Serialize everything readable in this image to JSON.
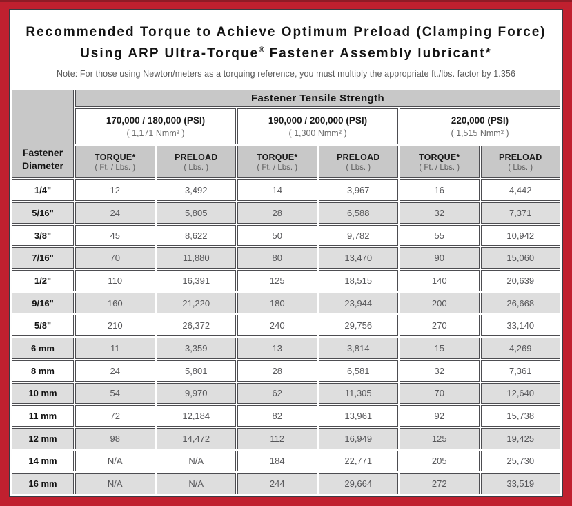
{
  "title": {
    "line1": "Recommended Torque to Achieve Optimum Preload (Clamping Force)",
    "line2_pre": "Using ARP Ultra-Torque",
    "line2_sup": "®",
    "line2_post": " Fastener Assembly lubricant*"
  },
  "note": "Note: For those using Newton/meters as a torquing reference, you must multiply the appropriate ft./lbs. factor by 1.356",
  "colors": {
    "frame_red": "#c0202f",
    "frame_red_dark": "#8f1b26",
    "panel_border": "#3b3b44",
    "header_gray": "#c8c8c8",
    "stripe_gray": "#dedede",
    "cell_border": "#4d4d51",
    "value_text": "#57575a"
  },
  "table": {
    "corner_header": "Fastener Diameter",
    "tensile_header": "Fastener Tensile Strength",
    "groups": [
      {
        "psi": "170,000 / 180,000 (PSI)",
        "nmm": "( 1,171 Nmm² )"
      },
      {
        "psi": "190,000 / 200,000 (PSI)",
        "nmm": "( 1,300 Nmm² )"
      },
      {
        "psi": "220,000 (PSI)",
        "nmm": "( 1,515 Nmm² )"
      }
    ],
    "col_headers": {
      "torque": "TORQUE*",
      "torque_sub": "( Ft. / Lbs. )",
      "preload": "PRELOAD",
      "preload_sub": "( Lbs. )"
    },
    "rows": [
      {
        "diameter": "1/4\"",
        "values": [
          "12",
          "3,492",
          "14",
          "3,967",
          "16",
          "4,442"
        ]
      },
      {
        "diameter": "5/16\"",
        "values": [
          "24",
          "5,805",
          "28",
          "6,588",
          "32",
          "7,371"
        ]
      },
      {
        "diameter": "3/8\"",
        "values": [
          "45",
          "8,622",
          "50",
          "9,782",
          "55",
          "10,942"
        ]
      },
      {
        "diameter": "7/16\"",
        "values": [
          "70",
          "11,880",
          "80",
          "13,470",
          "90",
          "15,060"
        ]
      },
      {
        "diameter": "1/2\"",
        "values": [
          "110",
          "16,391",
          "125",
          "18,515",
          "140",
          "20,639"
        ]
      },
      {
        "diameter": "9/16\"",
        "values": [
          "160",
          "21,220",
          "180",
          "23,944",
          "200",
          "26,668"
        ]
      },
      {
        "diameter": "5/8\"",
        "values": [
          "210",
          "26,372",
          "240",
          "29,756",
          "270",
          "33,140"
        ]
      },
      {
        "diameter": "6 mm",
        "values": [
          "11",
          "3,359",
          "13",
          "3,814",
          "15",
          "4,269"
        ]
      },
      {
        "diameter": "8 mm",
        "values": [
          "24",
          "5,801",
          "28",
          "6,581",
          "32",
          "7,361"
        ]
      },
      {
        "diameter": "10 mm",
        "values": [
          "54",
          "9,970",
          "62",
          "11,305",
          "70",
          "12,640"
        ]
      },
      {
        "diameter": "11 mm",
        "values": [
          "72",
          "12,184",
          "82",
          "13,961",
          "92",
          "15,738"
        ]
      },
      {
        "diameter": "12 mm",
        "values": [
          "98",
          "14,472",
          "112",
          "16,949",
          "125",
          "19,425"
        ]
      },
      {
        "diameter": "14 mm",
        "values": [
          "N/A",
          "N/A",
          "184",
          "22,771",
          "205",
          "25,730"
        ]
      },
      {
        "diameter": "16 mm",
        "values": [
          "N/A",
          "N/A",
          "244",
          "29,664",
          "272",
          "33,519"
        ]
      }
    ]
  }
}
